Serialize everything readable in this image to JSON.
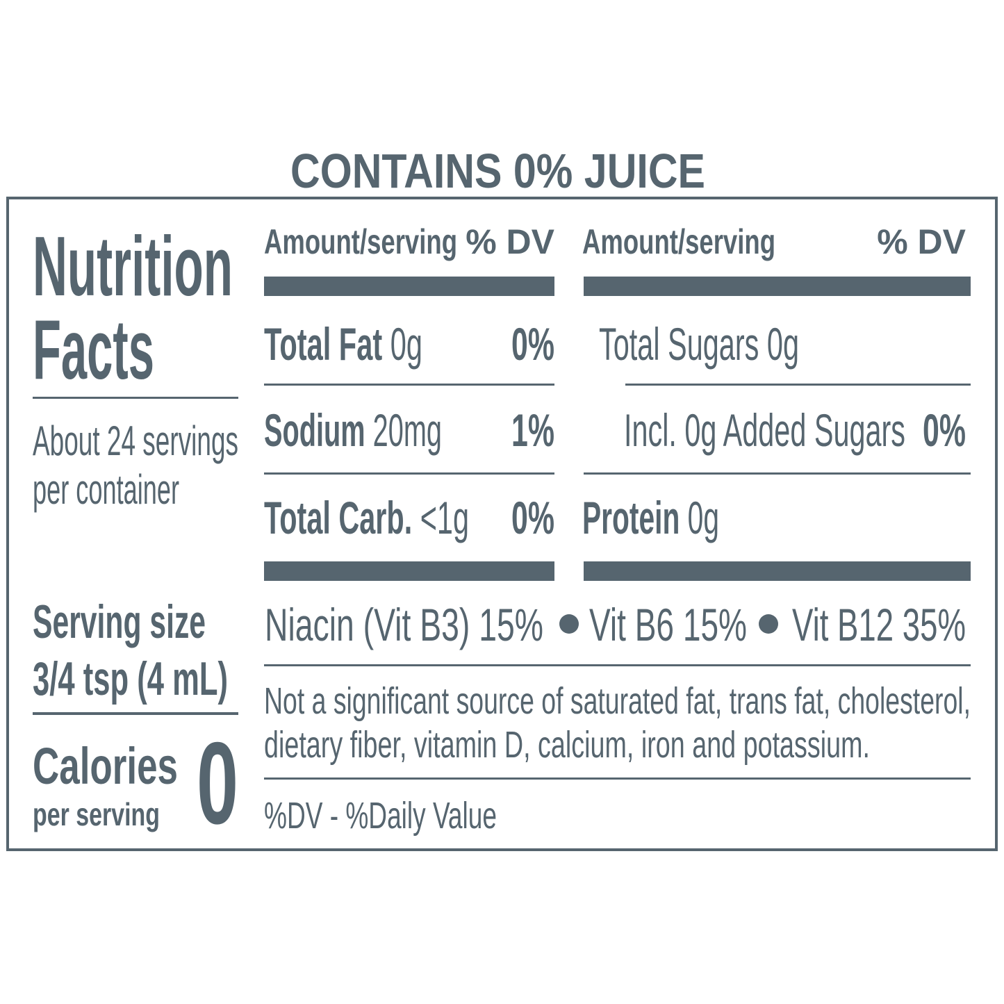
{
  "juice_statement": "CONTAINS 0% JUICE",
  "title": [
    "Nutrition",
    "Facts"
  ],
  "servings_per_container": [
    "About 24 servings",
    "per container"
  ],
  "serving_size": {
    "label": "Serving size",
    "value": "3/4 tsp (4 mL)"
  },
  "calories": {
    "label": "Calories",
    "sublabel": "per serving",
    "value": "0"
  },
  "left_column": {
    "header": {
      "amount": "Amount/serving",
      "dv": "% DV"
    },
    "rows": [
      {
        "name": "Total Fat",
        "amount": "0g",
        "dv": "0%"
      },
      {
        "name": "Sodium",
        "amount": "20mg",
        "dv": "1%"
      },
      {
        "name": "Total Carb.",
        "amount": "<1g",
        "dv": "0%"
      }
    ]
  },
  "right_column": {
    "header": {
      "amount": "Amount/serving",
      "dv": "% DV"
    },
    "rows": [
      {
        "label": "Total Sugars 0g"
      },
      {
        "label": "Incl. 0g Added Sugars",
        "dv": "0%"
      },
      {
        "name": "Protein",
        "amount": "0g"
      }
    ]
  },
  "vitamins": [
    "Niacin (Vit B3) 15%",
    "Vit B6 15%",
    "Vit B12 35%"
  ],
  "footnote": [
    "Not a significant source of saturated fat, trans fat, cholesterol,",
    "dietary fiber, vitamin D, calcium, iron and potassium."
  ],
  "dv_note": "%DV - %Daily Value"
}
